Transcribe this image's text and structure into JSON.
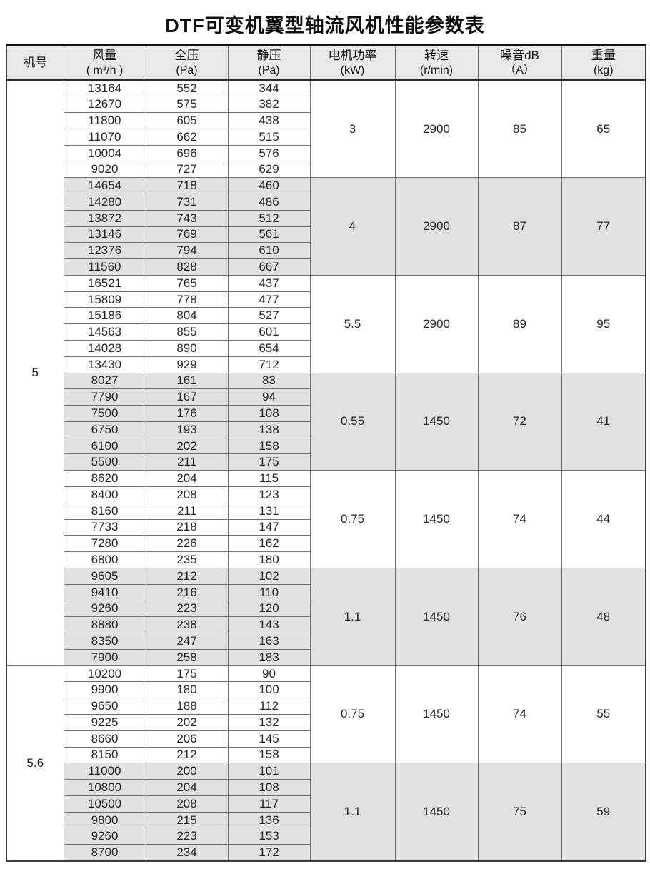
{
  "title": "DTF可变机翼型轴流风机性能参数表",
  "table": {
    "headers": [
      {
        "line1": "机号",
        "line2": ""
      },
      {
        "line1": "风量",
        "line2": "( m³/h )"
      },
      {
        "line1": "全压",
        "line2": "(Pa)"
      },
      {
        "line1": "静压",
        "line2": "(Pa)"
      },
      {
        "line1": "电机功率",
        "line2": "(kW)"
      },
      {
        "line1": "转速",
        "line2": "(r/min)"
      },
      {
        "line1": "噪音dB",
        "line2": "（A）"
      },
      {
        "line1": "重量",
        "line2": "(kg)"
      }
    ],
    "machines": [
      {
        "model": "5",
        "groups": [
          {
            "shaded": false,
            "power": "3",
            "speed": "2900",
            "noise": "85",
            "weight": "65",
            "rows": [
              [
                13164,
                552,
                344
              ],
              [
                12670,
                575,
                382
              ],
              [
                11800,
                605,
                438
              ],
              [
                11070,
                662,
                515
              ],
              [
                10004,
                696,
                576
              ],
              [
                9020,
                727,
                629
              ]
            ]
          },
          {
            "shaded": true,
            "power": "4",
            "speed": "2900",
            "noise": "87",
            "weight": "77",
            "rows": [
              [
                14654,
                718,
                460
              ],
              [
                14280,
                731,
                486
              ],
              [
                13872,
                743,
                512
              ],
              [
                13146,
                769,
                561
              ],
              [
                12376,
                794,
                610
              ],
              [
                11560,
                828,
                667
              ]
            ]
          },
          {
            "shaded": false,
            "power": "5.5",
            "speed": "2900",
            "noise": "89",
            "weight": "95",
            "rows": [
              [
                16521,
                765,
                437
              ],
              [
                15809,
                778,
                477
              ],
              [
                15186,
                804,
                527
              ],
              [
                14563,
                855,
                601
              ],
              [
                14028,
                890,
                654
              ],
              [
                13430,
                929,
                712
              ]
            ]
          },
          {
            "shaded": true,
            "power": "0.55",
            "speed": "1450",
            "noise": "72",
            "weight": "41",
            "rows": [
              [
                8027,
                161,
                83
              ],
              [
                7790,
                167,
                94
              ],
              [
                7500,
                176,
                108
              ],
              [
                6750,
                193,
                138
              ],
              [
                6100,
                202,
                158
              ],
              [
                5500,
                211,
                175
              ]
            ]
          },
          {
            "shaded": false,
            "power": "0.75",
            "speed": "1450",
            "noise": "74",
            "weight": "44",
            "rows": [
              [
                8620,
                204,
                115
              ],
              [
                8400,
                208,
                123
              ],
              [
                8160,
                211,
                131
              ],
              [
                7733,
                218,
                147
              ],
              [
                7280,
                226,
                162
              ],
              [
                6800,
                235,
                180
              ]
            ]
          },
          {
            "shaded": true,
            "power": "1.1",
            "speed": "1450",
            "noise": "76",
            "weight": "48",
            "rows": [
              [
                9605,
                212,
                102
              ],
              [
                9410,
                216,
                110
              ],
              [
                9260,
                223,
                120
              ],
              [
                8880,
                238,
                143
              ],
              [
                8350,
                247,
                163
              ],
              [
                7900,
                258,
                183
              ]
            ]
          }
        ]
      },
      {
        "model": "5.6",
        "groups": [
          {
            "shaded": false,
            "power": "0.75",
            "speed": "1450",
            "noise": "74",
            "weight": "55",
            "rows": [
              [
                10200,
                175,
                90
              ],
              [
                9900,
                180,
                100
              ],
              [
                9650,
                188,
                112
              ],
              [
                9225,
                202,
                132
              ],
              [
                8660,
                206,
                145
              ],
              [
                8150,
                212,
                158
              ]
            ]
          },
          {
            "shaded": true,
            "power": "1.1",
            "speed": "1450",
            "noise": "75",
            "weight": "59",
            "rows": [
              [
                11000,
                200,
                101
              ],
              [
                10800,
                204,
                108
              ],
              [
                10500,
                208,
                117
              ],
              [
                9800,
                215,
                136
              ],
              [
                9260,
                223,
                153
              ],
              [
                8700,
                234,
                172
              ]
            ]
          }
        ]
      }
    ]
  }
}
